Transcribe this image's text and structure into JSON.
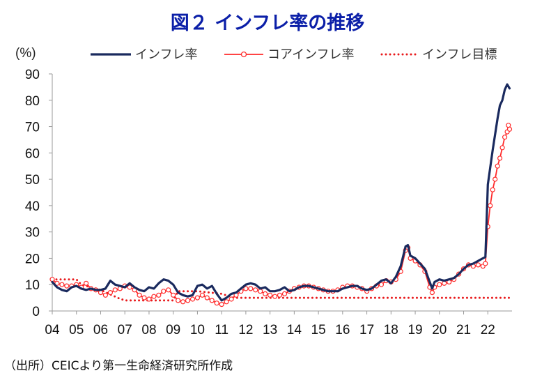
{
  "chart_data": {
    "type": "line",
    "title": "図２ インフレ率の推移",
    "unit_label": "(%)",
    "source": "（出所）CEICより第一生命経済研究所作成",
    "xlim": [
      2004.0,
      2023.0
    ],
    "ylim": [
      0,
      90
    ],
    "y_ticks": [
      0,
      10,
      20,
      30,
      40,
      50,
      60,
      70,
      80,
      90
    ],
    "x_ticks": [
      {
        "label": "04",
        "x": 2004.0
      },
      {
        "label": "05",
        "x": 2005.0
      },
      {
        "label": "06",
        "x": 2006.0
      },
      {
        "label": "07",
        "x": 2007.0
      },
      {
        "label": "08",
        "x": 2008.0
      },
      {
        "label": "09",
        "x": 2009.0
      },
      {
        "label": "10",
        "x": 2010.0
      },
      {
        "label": "11",
        "x": 2011.0
      },
      {
        "label": "12",
        "x": 2012.0
      },
      {
        "label": "13",
        "x": 2013.0
      },
      {
        "label": "14",
        "x": 2014.0
      },
      {
        "label": "15",
        "x": 2015.0
      },
      {
        "label": "16",
        "x": 2016.0
      },
      {
        "label": "17",
        "x": 2017.0
      },
      {
        "label": "18",
        "x": 2018.0
      },
      {
        "label": "19",
        "x": 2019.0
      },
      {
        "label": "20",
        "x": 2020.0
      },
      {
        "label": "21",
        "x": 2021.0
      },
      {
        "label": "22",
        "x": 2022.0
      }
    ],
    "legend_position": "top",
    "series": [
      {
        "name": "インフレ率",
        "color": "#1a2a5e",
        "style": "solid",
        "points": [
          [
            2004.0,
            11
          ],
          [
            2004.2,
            9
          ],
          [
            2004.4,
            8
          ],
          [
            2004.6,
            7.5
          ],
          [
            2004.8,
            9
          ],
          [
            2005.0,
            9.5
          ],
          [
            2005.2,
            8.5
          ],
          [
            2005.4,
            8
          ],
          [
            2005.6,
            8.5
          ],
          [
            2005.8,
            8
          ],
          [
            2006.0,
            8
          ],
          [
            2006.2,
            8.5
          ],
          [
            2006.4,
            11.5
          ],
          [
            2006.6,
            10
          ],
          [
            2006.8,
            9.5
          ],
          [
            2007.0,
            9
          ],
          [
            2007.2,
            10.5
          ],
          [
            2007.4,
            9
          ],
          [
            2007.6,
            8
          ],
          [
            2007.8,
            7.5
          ],
          [
            2008.0,
            9
          ],
          [
            2008.2,
            8.5
          ],
          [
            2008.4,
            10.5
          ],
          [
            2008.6,
            12
          ],
          [
            2008.8,
            11.5
          ],
          [
            2009.0,
            10
          ],
          [
            2009.2,
            7
          ],
          [
            2009.4,
            6
          ],
          [
            2009.6,
            5.5
          ],
          [
            2009.8,
            6
          ],
          [
            2010.0,
            9.5
          ],
          [
            2010.2,
            10
          ],
          [
            2010.4,
            8.5
          ],
          [
            2010.6,
            9.5
          ],
          [
            2010.8,
            6.5
          ],
          [
            2011.0,
            4
          ],
          [
            2011.2,
            5
          ],
          [
            2011.4,
            6.5
          ],
          [
            2011.6,
            7
          ],
          [
            2011.8,
            8.5
          ],
          [
            2012.0,
            10
          ],
          [
            2012.2,
            10.5
          ],
          [
            2012.4,
            10
          ],
          [
            2012.6,
            8.5
          ],
          [
            2012.8,
            9
          ],
          [
            2013.0,
            7.5
          ],
          [
            2013.2,
            7.5
          ],
          [
            2013.4,
            8
          ],
          [
            2013.6,
            9
          ],
          [
            2013.8,
            7.5
          ],
          [
            2014.0,
            8
          ],
          [
            2014.2,
            9
          ],
          [
            2014.4,
            9.5
          ],
          [
            2014.6,
            9.5
          ],
          [
            2014.8,
            9
          ],
          [
            2015.0,
            8.5
          ],
          [
            2015.2,
            8
          ],
          [
            2015.4,
            7.5
          ],
          [
            2015.6,
            7.5
          ],
          [
            2015.8,
            7.5
          ],
          [
            2016.0,
            8.5
          ],
          [
            2016.2,
            9
          ],
          [
            2016.4,
            9.5
          ],
          [
            2016.6,
            9.5
          ],
          [
            2016.8,
            8.5
          ],
          [
            2017.0,
            8
          ],
          [
            2017.2,
            8.5
          ],
          [
            2017.4,
            10
          ],
          [
            2017.6,
            11.5
          ],
          [
            2017.8,
            12
          ],
          [
            2018.0,
            10.5
          ],
          [
            2018.2,
            13
          ],
          [
            2018.4,
            17
          ],
          [
            2018.6,
            24.5
          ],
          [
            2018.7,
            25
          ],
          [
            2018.8,
            21
          ],
          [
            2019.0,
            20
          ],
          [
            2019.2,
            18
          ],
          [
            2019.4,
            16
          ],
          [
            2019.6,
            11
          ],
          [
            2019.7,
            8.5
          ],
          [
            2019.8,
            11
          ],
          [
            2020.0,
            12
          ],
          [
            2020.2,
            11.5
          ],
          [
            2020.4,
            12
          ],
          [
            2020.6,
            12.5
          ],
          [
            2020.8,
            14
          ],
          [
            2021.0,
            16
          ],
          [
            2021.2,
            17.5
          ],
          [
            2021.4,
            18
          ],
          [
            2021.6,
            19
          ],
          [
            2021.8,
            20
          ],
          [
            2021.9,
            20.5
          ],
          [
            2022.0,
            48
          ],
          [
            2022.2,
            61
          ],
          [
            2022.4,
            73
          ],
          [
            2022.5,
            78
          ],
          [
            2022.6,
            80
          ],
          [
            2022.7,
            84
          ],
          [
            2022.8,
            86
          ],
          [
            2022.9,
            84.5
          ]
        ]
      },
      {
        "name": "コアインフレ率",
        "color": "#ff2a2a",
        "style": "line-markers",
        "points": [
          [
            2004.0,
            12
          ],
          [
            2004.2,
            10.5
          ],
          [
            2004.4,
            10
          ],
          [
            2004.6,
            9.5
          ],
          [
            2004.8,
            9.5
          ],
          [
            2005.0,
            10
          ],
          [
            2005.2,
            9
          ],
          [
            2005.4,
            10.5
          ],
          [
            2005.6,
            8.5
          ],
          [
            2005.8,
            8
          ],
          [
            2006.0,
            7
          ],
          [
            2006.2,
            6
          ],
          [
            2006.4,
            7
          ],
          [
            2006.6,
            8
          ],
          [
            2006.8,
            8.5
          ],
          [
            2007.0,
            9.5
          ],
          [
            2007.2,
            9
          ],
          [
            2007.4,
            8
          ],
          [
            2007.6,
            6
          ],
          [
            2007.8,
            5
          ],
          [
            2008.0,
            4.5
          ],
          [
            2008.2,
            5.5
          ],
          [
            2008.4,
            6
          ],
          [
            2008.6,
            7.5
          ],
          [
            2008.8,
            8
          ],
          [
            2009.0,
            6
          ],
          [
            2009.2,
            4
          ],
          [
            2009.4,
            3.5
          ],
          [
            2009.6,
            4
          ],
          [
            2009.8,
            4.5
          ],
          [
            2010.0,
            5
          ],
          [
            2010.2,
            6
          ],
          [
            2010.4,
            5
          ],
          [
            2010.6,
            4
          ],
          [
            2010.8,
            3
          ],
          [
            2011.0,
            2.5
          ],
          [
            2011.2,
            3.5
          ],
          [
            2011.4,
            4.5
          ],
          [
            2011.6,
            6
          ],
          [
            2011.8,
            7.5
          ],
          [
            2012.0,
            8.5
          ],
          [
            2012.2,
            8.5
          ],
          [
            2012.4,
            8
          ],
          [
            2012.6,
            7.5
          ],
          [
            2012.8,
            6.5
          ],
          [
            2013.0,
            6
          ],
          [
            2013.2,
            5.5
          ],
          [
            2013.4,
            6
          ],
          [
            2013.6,
            6.5
          ],
          [
            2013.8,
            7.5
          ],
          [
            2014.0,
            8.5
          ],
          [
            2014.2,
            9
          ],
          [
            2014.4,
            9.5
          ],
          [
            2014.6,
            9.5
          ],
          [
            2014.8,
            9
          ],
          [
            2015.0,
            8.5
          ],
          [
            2015.2,
            8
          ],
          [
            2015.4,
            7.5
          ],
          [
            2015.6,
            7.5
          ],
          [
            2015.8,
            8
          ],
          [
            2016.0,
            9
          ],
          [
            2016.2,
            9.5
          ],
          [
            2016.4,
            9.5
          ],
          [
            2016.6,
            9
          ],
          [
            2016.8,
            8.5
          ],
          [
            2017.0,
            7.5
          ],
          [
            2017.2,
            8.5
          ],
          [
            2017.4,
            9.5
          ],
          [
            2017.6,
            10
          ],
          [
            2017.8,
            11.5
          ],
          [
            2018.0,
            11
          ],
          [
            2018.2,
            12
          ],
          [
            2018.4,
            15
          ],
          [
            2018.6,
            23
          ],
          [
            2018.7,
            24
          ],
          [
            2018.8,
            20
          ],
          [
            2019.0,
            19
          ],
          [
            2019.2,
            17.5
          ],
          [
            2019.4,
            15
          ],
          [
            2019.6,
            9
          ],
          [
            2019.7,
            7
          ],
          [
            2019.8,
            9
          ],
          [
            2020.0,
            10
          ],
          [
            2020.2,
            10.5
          ],
          [
            2020.4,
            11
          ],
          [
            2020.6,
            12
          ],
          [
            2020.8,
            14
          ],
          [
            2021.0,
            16
          ],
          [
            2021.2,
            17.5
          ],
          [
            2021.4,
            17
          ],
          [
            2021.6,
            17.5
          ],
          [
            2021.8,
            17
          ],
          [
            2021.9,
            18
          ],
          [
            2022.0,
            32
          ],
          [
            2022.1,
            40
          ],
          [
            2022.2,
            46
          ],
          [
            2022.3,
            50
          ],
          [
            2022.4,
            55
          ],
          [
            2022.5,
            58
          ],
          [
            2022.6,
            62
          ],
          [
            2022.7,
            66
          ],
          [
            2022.8,
            68
          ],
          [
            2022.85,
            70.5
          ],
          [
            2022.9,
            69
          ]
        ]
      },
      {
        "name": "インフレ目標",
        "color": "#e8191b",
        "style": "dotted",
        "points": [
          [
            2004.0,
            12
          ],
          [
            2005.0,
            12
          ],
          [
            2005.2,
            10
          ],
          [
            2006.0,
            8
          ],
          [
            2006.7,
            5
          ],
          [
            2007.0,
            4
          ],
          [
            2009.0,
            4
          ],
          [
            2009.2,
            7.5
          ],
          [
            2010.0,
            7.5
          ],
          [
            2011.0,
            6.5
          ],
          [
            2011.5,
            5
          ],
          [
            2023.0,
            5
          ]
        ]
      }
    ]
  }
}
